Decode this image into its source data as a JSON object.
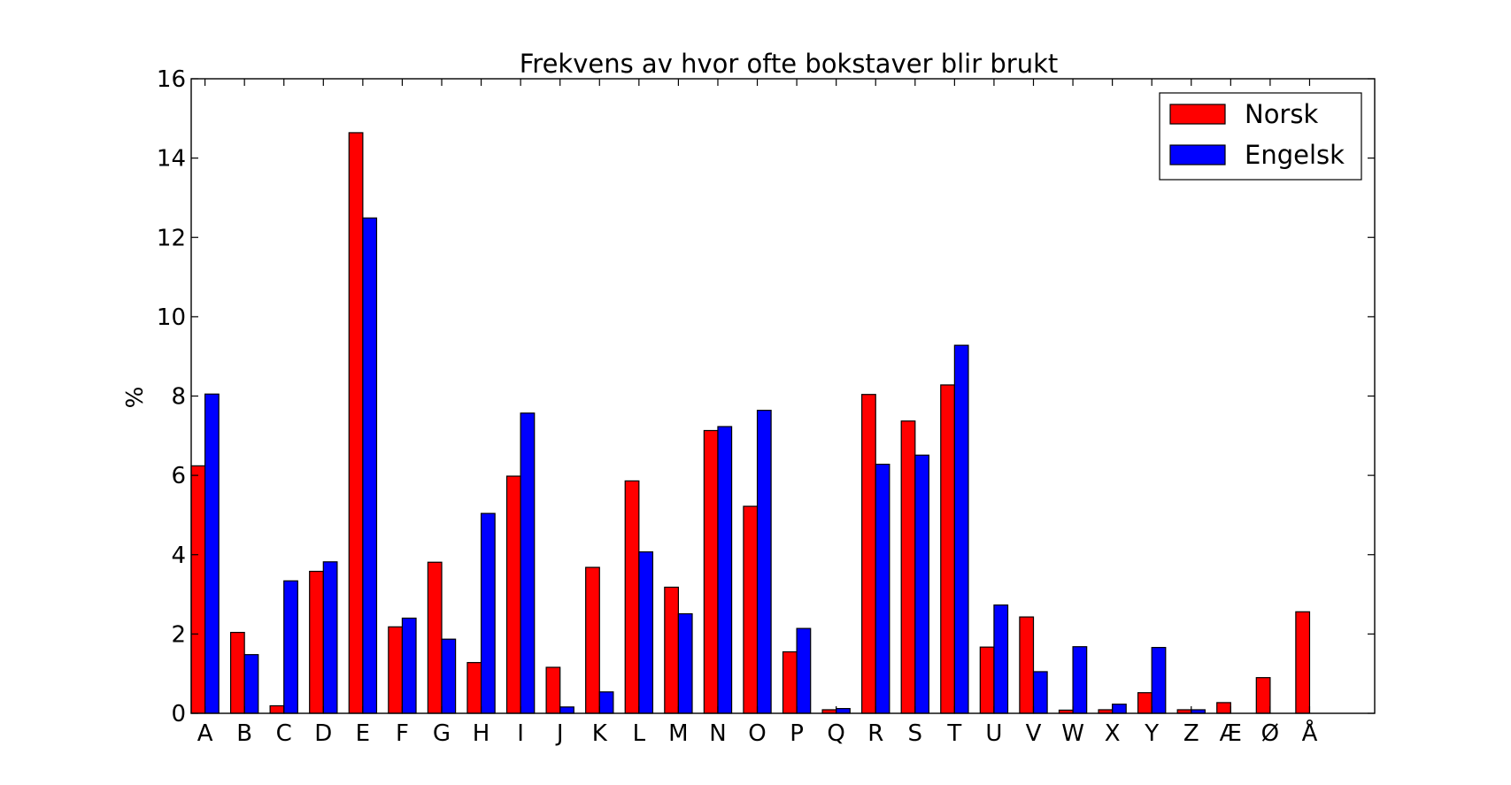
{
  "chart_data": {
    "type": "bar",
    "title": "Frekvens av hvor ofte bokstaver blir brukt",
    "xlabel": "",
    "ylabel": "%",
    "ylim": [
      0,
      16
    ],
    "yticks": [
      "0",
      "2",
      "4",
      "6",
      "8",
      "10",
      "12",
      "14",
      "16"
    ],
    "grid": false,
    "legend_position": "top-right",
    "categories": [
      "A",
      "B",
      "C",
      "D",
      "E",
      "F",
      "G",
      "H",
      "I",
      "J",
      "K",
      "L",
      "M",
      "N",
      "O",
      "P",
      "Q",
      "R",
      "S",
      "T",
      "U",
      "V",
      "W",
      "X",
      "Y",
      "Z",
      "Æ",
      "Ø",
      "Å"
    ],
    "series": [
      {
        "name": "Norsk",
        "color": "#ff0000",
        "values": [
          6.24,
          2.04,
          0.19,
          3.58,
          14.64,
          2.18,
          3.81,
          1.28,
          5.98,
          1.16,
          3.68,
          5.86,
          3.18,
          7.13,
          5.22,
          1.55,
          0.09,
          8.04,
          7.37,
          8.28,
          1.67,
          2.43,
          0.08,
          0.09,
          0.52,
          0.09,
          0.27,
          0.9,
          2.56
        ]
      },
      {
        "name": "Engelsk",
        "color": "#0000ff",
        "values": [
          8.05,
          1.48,
          3.34,
          3.82,
          12.49,
          2.4,
          1.87,
          5.04,
          7.57,
          0.16,
          0.54,
          4.07,
          2.51,
          7.23,
          7.64,
          2.14,
          0.12,
          6.28,
          6.51,
          9.28,
          2.73,
          1.05,
          1.68,
          0.23,
          1.66,
          0.09,
          0,
          0,
          0
        ]
      }
    ]
  }
}
